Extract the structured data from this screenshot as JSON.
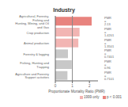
{
  "chart_data": {
    "type": "bar",
    "orientation": "horizontal",
    "title": "Industry",
    "xlabel": "Proportionate Mortality Ratio (PMR)",
    "categories": [
      "Agricultural, Forestry, Fishing and\nHunting, Mining, and Oil and Gas",
      "Crop production",
      "Animal production",
      "Forestry & logging",
      "Fishing, Hunting and Trapping",
      "Agriculture and Forestry Support activities"
    ],
    "values": [
      2.13,
      1.4201,
      1.3501,
      0.7401,
      0.96,
      0.7101
    ],
    "colors": [
      "#e8837e",
      "#f2b5b3",
      "#f2b5b3",
      "#c8c8c8",
      "#c8c8c8",
      "#c8c8c8"
    ],
    "data_labels": true,
    "value_labels": [
      "PMR = 2.13",
      "PMR = 1.4201",
      "PMR = 1.3501",
      "PMR = 0.7401",
      "PMR = 0.96",
      "PMR = 0.7101"
    ],
    "xlim": [
      0,
      2.5
    ],
    "xticks": [
      0,
      1,
      2
    ],
    "grid": false,
    "reference_x": 1.0,
    "legend": "lower right",
    "legend_entries": [
      {
        "name": "1999 only",
        "color": "#f2b5b3"
      },
      {
        "name": "p < 0.001",
        "color": "#e8837e"
      }
    ]
  }
}
